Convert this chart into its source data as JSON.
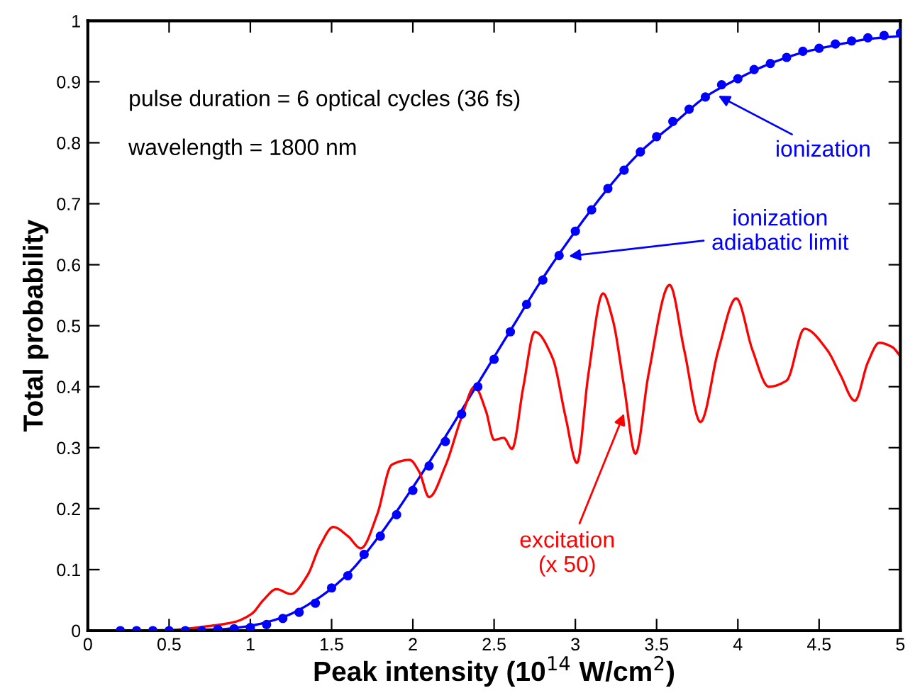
{
  "chart_data": {
    "type": "line",
    "xlabel": "Peak intensity (10$^{14}$ W/cm$^{2}$)",
    "ylabel": "Total probability",
    "xlim": [
      0,
      5
    ],
    "ylim": [
      0,
      1
    ],
    "xticks": [
      0,
      0.5,
      1,
      1.5,
      2,
      2.5,
      3,
      3.5,
      4,
      4.5,
      5
    ],
    "yticks": [
      0,
      0.1,
      0.2,
      0.3,
      0.4,
      0.5,
      0.6,
      0.7,
      0.8,
      0.9,
      1
    ],
    "grid": false,
    "series": [
      {
        "color": "#0000ff",
        "line_style": "solid",
        "marker": "none",
        "x": [
          0.2,
          0.8,
          1.0,
          1.2,
          1.4,
          1.6,
          1.8,
          2.0,
          2.2,
          2.4,
          2.6,
          2.8,
          3.0,
          3.2,
          3.4,
          3.6,
          3.8,
          4.0,
          4.2,
          4.4,
          4.6,
          4.8,
          5.0
        ],
        "values": [
          0,
          0.002,
          0.008,
          0.022,
          0.05,
          0.093,
          0.158,
          0.235,
          0.318,
          0.405,
          0.492,
          0.578,
          0.655,
          0.725,
          0.785,
          0.83,
          0.875,
          0.905,
          0.93,
          0.948,
          0.96,
          0.97,
          0.975
        ]
      },
      {
        "type": "scatter",
        "color": "#0000ff",
        "marker": "circle",
        "x": [
          0.2,
          0.3,
          0.4,
          0.5,
          0.6,
          0.7,
          0.8,
          0.9,
          1.0,
          1.1,
          1.2,
          1.3,
          1.4,
          1.5,
          1.6,
          1.7,
          1.8,
          1.9,
          2.0,
          2.1,
          2.2,
          2.3,
          2.4,
          2.5,
          2.6,
          2.7,
          2.8,
          2.9,
          3.0,
          3.1,
          3.2,
          3.3,
          3.4,
          3.5,
          3.6,
          3.7,
          3.8,
          3.9,
          4.0,
          4.1,
          4.2,
          4.3,
          4.4,
          4.5,
          4.6,
          4.7,
          4.8,
          4.9,
          5.0
        ],
        "values": [
          0,
          0,
          0,
          0,
          0,
          0,
          0.002,
          0.003,
          0.005,
          0.01,
          0.02,
          0.03,
          0.045,
          0.07,
          0.09,
          0.125,
          0.155,
          0.19,
          0.23,
          0.27,
          0.31,
          0.355,
          0.4,
          0.445,
          0.49,
          0.535,
          0.575,
          0.615,
          0.655,
          0.69,
          0.725,
          0.755,
          0.785,
          0.81,
          0.835,
          0.855,
          0.875,
          0.895,
          0.905,
          0.92,
          0.93,
          0.94,
          0.95,
          0.955,
          0.962,
          0.967,
          0.972,
          0.976,
          0.98
        ]
      },
      {
        "color": "#ff0000",
        "line_style": "solid",
        "marker": "none",
        "x": [
          0.5,
          0.73,
          0.9,
          1.01,
          1.08,
          1.16,
          1.25,
          1.35,
          1.43,
          1.51,
          1.6,
          1.68,
          1.78,
          1.87,
          1.98,
          2.04,
          2.1,
          2.2,
          2.3,
          2.38,
          2.45,
          2.5,
          2.56,
          2.61,
          2.68,
          2.75,
          2.86,
          2.94,
          3.01,
          3.08,
          3.17,
          3.23,
          3.3,
          3.37,
          3.45,
          3.58,
          3.67,
          3.77,
          3.88,
          3.99,
          4.09,
          4.19,
          4.3,
          4.41,
          4.55,
          4.63,
          4.72,
          4.8,
          4.87,
          4.95,
          5.0
        ],
        "values": [
          0,
          0.007,
          0.014,
          0.028,
          0.05,
          0.068,
          0.06,
          0.09,
          0.14,
          0.17,
          0.155,
          0.135,
          0.19,
          0.272,
          0.28,
          0.26,
          0.219,
          0.27,
          0.35,
          0.4,
          0.36,
          0.313,
          0.316,
          0.298,
          0.4,
          0.49,
          0.447,
          0.35,
          0.275,
          0.42,
          0.553,
          0.51,
          0.4,
          0.29,
          0.42,
          0.567,
          0.46,
          0.342,
          0.46,
          0.545,
          0.46,
          0.4,
          0.41,
          0.495,
          0.46,
          0.42,
          0.377,
          0.44,
          0.472,
          0.465,
          0.45
        ]
      }
    ],
    "annotations": [
      "pulse duration = 6 optical cycles (36 fs)",
      "wavelength = 1800 nm",
      {
        "text": "ionization",
        "x": 3.88,
        "y": 0.877
      },
      {
        "text": "ionization\nadiabatic limit",
        "x": 2.96,
        "y": 0.614
      },
      {
        "text": "excitation\n(x 50)",
        "x": 3.3,
        "y": 0.356
      }
    ]
  }
}
